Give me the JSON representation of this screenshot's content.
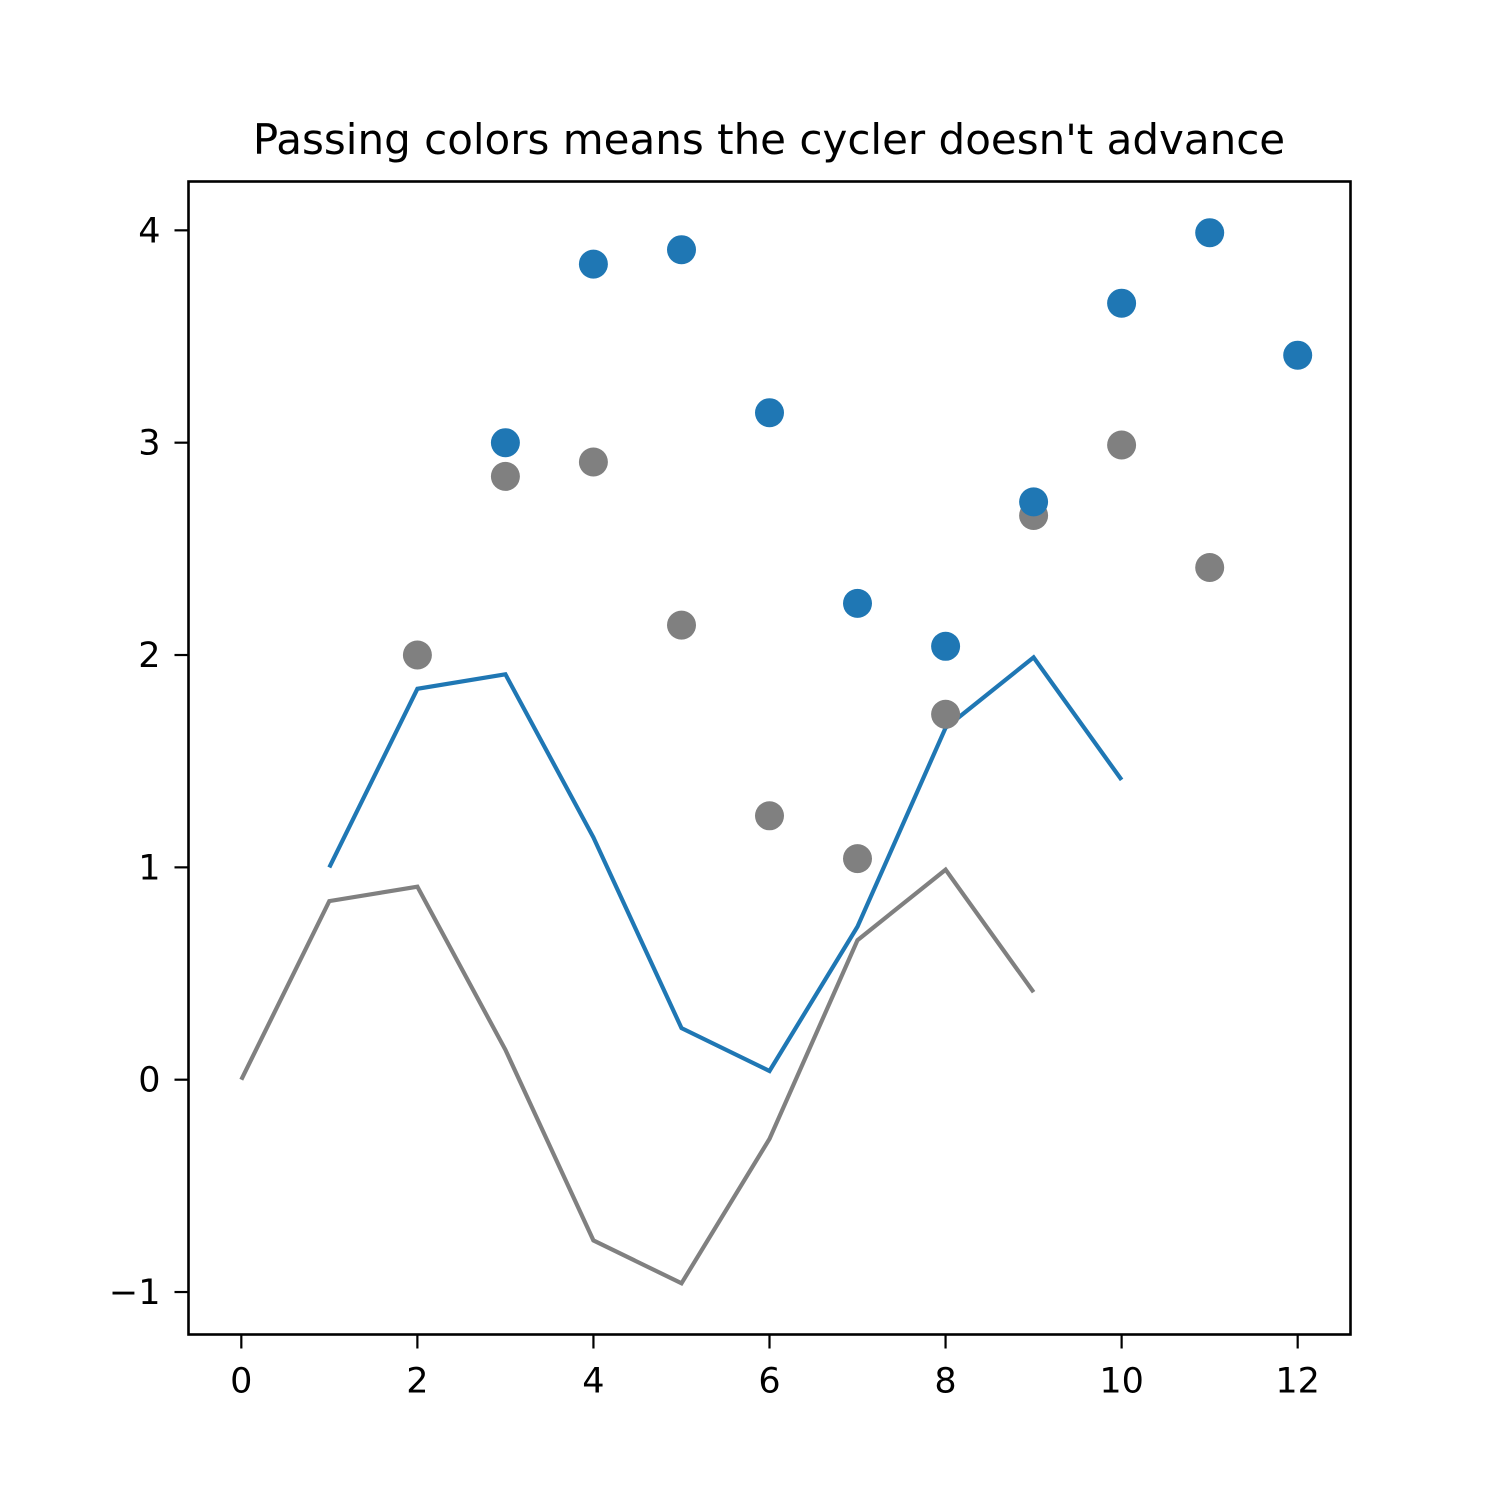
{
  "figure": {
    "title": "Passing colors means the cycler doesn't advance",
    "background": "#ffffff"
  },
  "colors": {
    "blue": "#1f77b4",
    "gray": "#808080",
    "axis": "#000000"
  },
  "chart_data": {
    "type": "line",
    "title": "Passing colors means the cycler doesn't advance",
    "xlabel": "",
    "ylabel": "",
    "xlim": [
      -0.6,
      12.6
    ],
    "ylim": [
      -1.2,
      4.23
    ],
    "xticks": [
      0,
      2,
      4,
      6,
      8,
      10,
      12
    ],
    "xtick_labels": [
      "0",
      "2",
      "4",
      "6",
      "8",
      "10",
      "12"
    ],
    "yticks": [
      -1,
      0,
      1,
      2,
      3,
      4
    ],
    "ytick_labels": [
      "−1",
      "0",
      "1",
      "2",
      "3",
      "4"
    ],
    "grid": false,
    "legend": null,
    "series": [
      {
        "name": "line-gray",
        "kind": "line",
        "color": "#808080",
        "x": [
          0,
          1,
          2,
          3,
          4,
          5,
          6,
          7,
          8,
          9
        ],
        "y": [
          0.0,
          0.841,
          0.909,
          0.141,
          -0.757,
          -0.959,
          -0.279,
          0.657,
          0.989,
          0.412
        ]
      },
      {
        "name": "line-blue",
        "kind": "line",
        "color": "#1f77b4",
        "x": [
          1,
          2,
          3,
          4,
          5,
          6,
          7,
          8,
          9,
          10
        ],
        "y": [
          1.0,
          1.841,
          1.909,
          1.141,
          0.243,
          0.041,
          0.721,
          1.657,
          1.989,
          1.412
        ]
      },
      {
        "name": "scatter-gray",
        "kind": "scatter",
        "color": "#808080",
        "x": [
          2,
          3,
          4,
          5,
          6,
          7,
          8,
          9,
          10,
          11
        ],
        "y": [
          2.0,
          2.841,
          2.909,
          2.141,
          1.243,
          1.041,
          1.721,
          2.657,
          2.989,
          2.412
        ]
      },
      {
        "name": "scatter-blue",
        "kind": "scatter",
        "color": "#1f77b4",
        "x": [
          3,
          4,
          5,
          6,
          7,
          8,
          9,
          10,
          11,
          12
        ],
        "y": [
          3.0,
          3.841,
          3.909,
          3.141,
          2.243,
          2.041,
          2.721,
          3.657,
          3.989,
          3.412
        ]
      }
    ]
  }
}
